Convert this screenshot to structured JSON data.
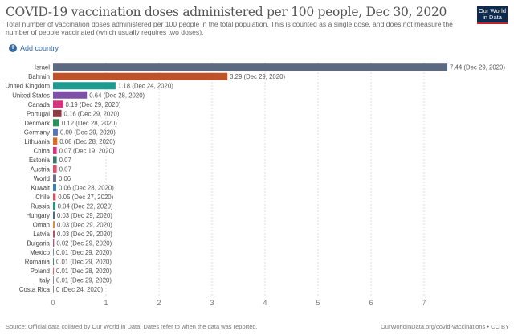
{
  "header": {
    "title": "COVID-19 vaccination doses administered per 100 people, Dec 30, 2020",
    "subtitle": "Total number of vaccination doses administered per 100 people in the total population. This is counted as a single dose, and does not measure the number of people vaccinated (which usually requires two doses).",
    "logo_text": "Our World in Data",
    "add_country": "Add country"
  },
  "footer": {
    "source": "Source: Official data collated by Our World in Data. Dates refer to when the data was reported.",
    "url": "OurWorldInData.org/covid-vaccinations • CC BY"
  },
  "chart_data": {
    "type": "bar",
    "orientation": "horizontal",
    "title": "COVID-19 vaccination doses administered per 100 people, Dec 30, 2020",
    "xlim": [
      0,
      7.5
    ],
    "xticks": [
      "0",
      "1",
      "2",
      "3",
      "4",
      "5",
      "6",
      "7"
    ],
    "grid": true,
    "categories": [
      "Israel",
      "Bahrain",
      "United Kingdom",
      "United States",
      "Canada",
      "Portugal",
      "Denmark",
      "Germany",
      "Lithuania",
      "China",
      "Estonia",
      "Austria",
      "World",
      "Kuwait",
      "Chile",
      "Russia",
      "Hungary",
      "Oman",
      "Latvia",
      "Bulgaria",
      "Mexico",
      "Romania",
      "Poland",
      "Italy",
      "Costa Rica"
    ],
    "values": [
      7.44,
      3.29,
      1.18,
      0.64,
      0.19,
      0.16,
      0.12,
      0.09,
      0.08,
      0.07,
      0.07,
      0.07,
      0.06,
      0.06,
      0.05,
      0.04,
      0.03,
      0.03,
      0.03,
      0.02,
      0.01,
      0.01,
      0.01,
      0.01,
      0
    ],
    "labels": [
      "7.44 (Dec 29, 2020)",
      "3.29 (Dec 29, 2020)",
      "1.18 (Dec 24, 2020)",
      "0.64 (Dec 28, 2020)",
      "0.19 (Dec 29, 2020)",
      "0.16 (Dec 29, 2020)",
      "0.12 (Dec 28, 2020)",
      "0.09 (Dec 29, 2020)",
      "0.08 (Dec 28, 2020)",
      "0.07 (Dec 19, 2020)",
      "0.07",
      "0.07",
      "0.06",
      "0.06 (Dec 28, 2020)",
      "0.05 (Dec 27, 2020)",
      "0.04 (Dec 22, 2020)",
      "0.03 (Dec 29, 2020)",
      "0.03 (Dec 29, 2020)",
      "0.03 (Dec 29, 2020)",
      "0.02 (Dec 29, 2020)",
      "0.01 (Dec 29, 2020)",
      "0.01 (Dec 29, 2020)",
      "0.01 (Dec 28, 2020)",
      "0.01 (Dec 29, 2020)",
      "0 (Dec 24, 2020)"
    ],
    "colors": [
      "#5b6a80",
      "#c0522a",
      "#1e9a8e",
      "#7d52a6",
      "#d6357e",
      "#8e3d46",
      "#2e8f5d",
      "#5a74b5",
      "#d86b2b",
      "#d6357e",
      "#3a7a6a",
      "#d9546a",
      "#6b6b8a",
      "#3d7eaa",
      "#c8575f",
      "#27957a",
      "#4a6a8a",
      "#d98a4a",
      "#b0506a",
      "#9a5a8a",
      "#7a8a9a",
      "#5a7a6a",
      "#d07070",
      "#8a8aa0",
      "#888888"
    ]
  }
}
